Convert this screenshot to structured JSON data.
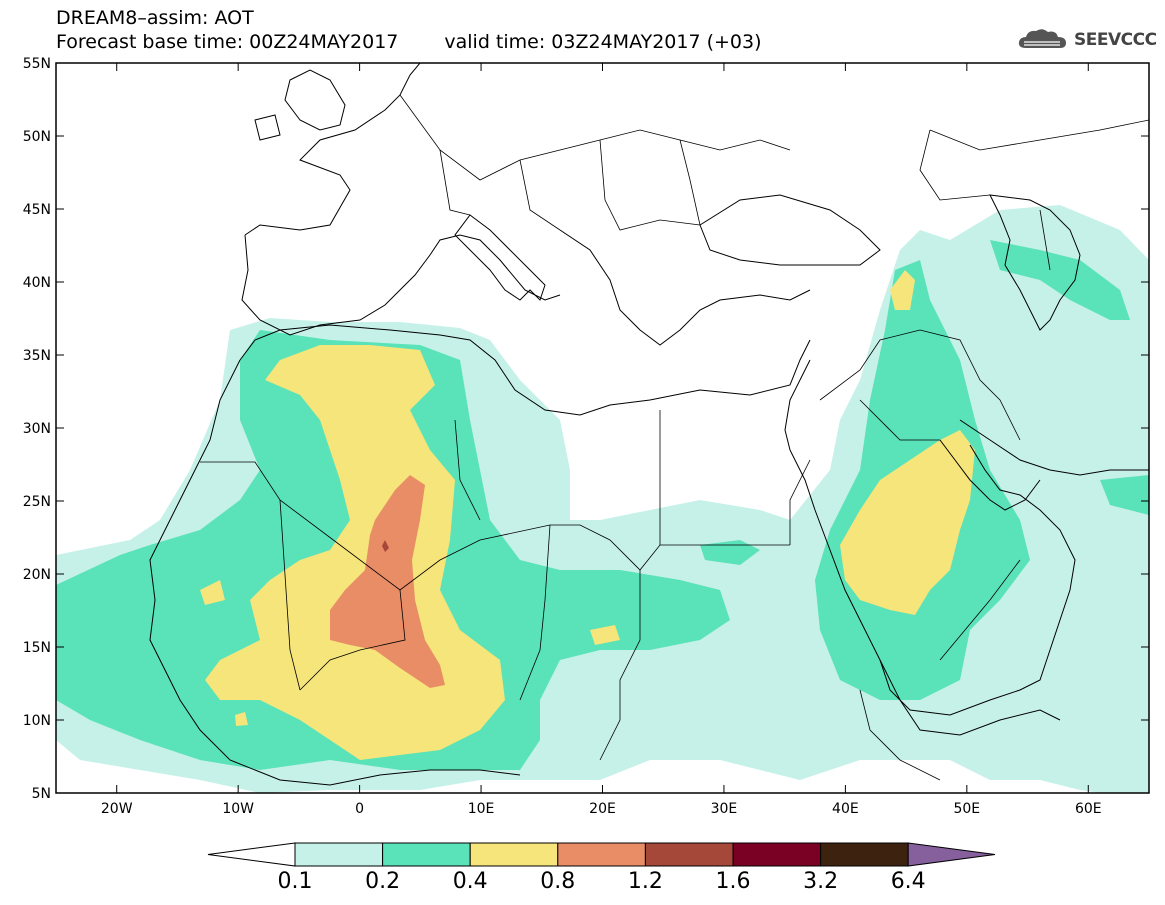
{
  "title_line1": "DREAM8–assim: AOT",
  "title_line2_base": "Forecast base time: 00Z24MAY2017",
  "title_line2_valid": "valid time: 03Z24MAY2017 (+03)",
  "logo_text": "SEEVCCC",
  "map": {
    "lon_range": [
      -25,
      65
    ],
    "lat_range": [
      5,
      55
    ],
    "lat_ticks": [
      "55N",
      "50N",
      "45N",
      "40N",
      "35N",
      "30N",
      "25N",
      "20N",
      "15N",
      "10N",
      "5N"
    ],
    "lon_ticks": [
      "20W",
      "10W",
      "0",
      "10E",
      "20E",
      "30E",
      "40E",
      "50E",
      "60E"
    ],
    "coastline_color": "#000000"
  },
  "colorbar": {
    "labels": [
      "0.1",
      "0.2",
      "0.4",
      "0.8",
      "1.2",
      "1.6",
      "3.2",
      "6.4"
    ],
    "colors": [
      "#ffffff",
      "#c6f1e9",
      "#5ae2b9",
      "#f5e57a",
      "#e98d66",
      "#a5483a",
      "#7a0024",
      "#3e2210",
      "#85609c"
    ]
  },
  "aot_colors": {
    "c01": "#c6f1e9",
    "c02": "#5ae2b9",
    "c04": "#f5e57a",
    "c08": "#e98d66",
    "c12": "#a5483a"
  }
}
